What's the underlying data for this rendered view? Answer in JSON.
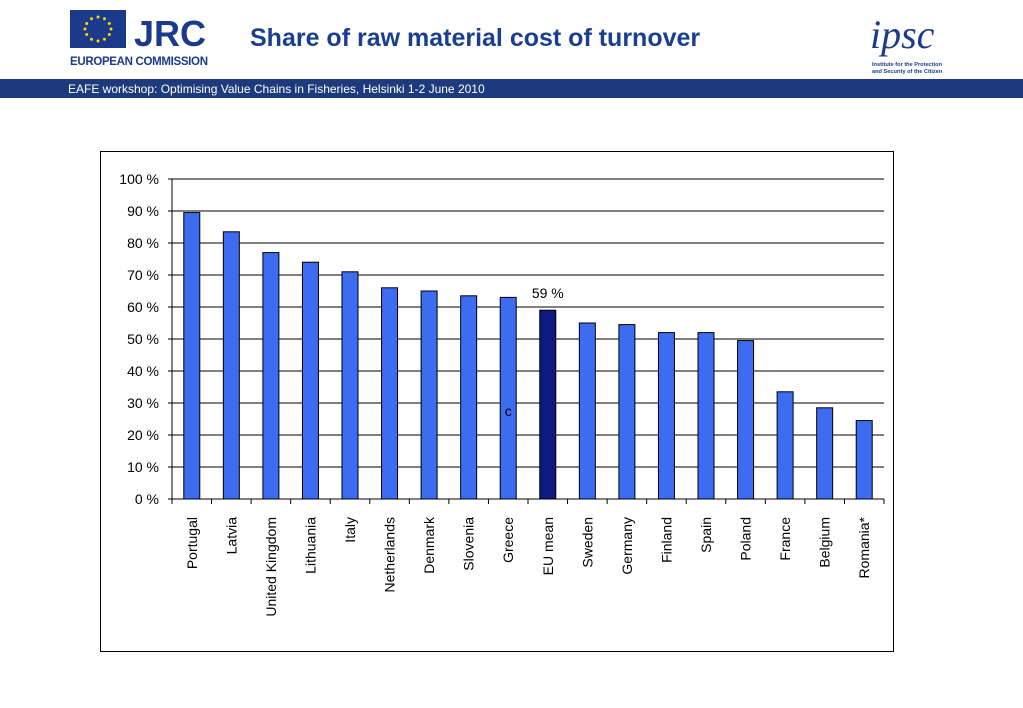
{
  "header": {
    "title": "Share of raw material cost of turnover",
    "subtitle": "EAFE workshop: Optimising  Value Chains in Fisheries, Helsinki 1-2 June 2010",
    "ec_logo_text": "JRC",
    "ec_logo_subtext": "EUROPEAN COMMISSION",
    "ipsc_logo_text": "ipsc",
    "ipsc_logo_subtext": [
      "Institute for the Protection",
      "and Security of the Citizen"
    ]
  },
  "colors": {
    "header_band": "#1c3a7c",
    "title": "#1a3f8f",
    "bar": "#3d6cf0",
    "bar_highlight": "#0a1a80"
  },
  "chart_data": {
    "type": "bar",
    "categories": [
      "Portugal",
      "Latvia",
      "United Kingdom",
      "Lithuania",
      "Italy",
      "Netherlands",
      "Denmark",
      "Slovenia",
      "Greece",
      "EU mean",
      "Sweden",
      "Germany",
      "Finland",
      "Spain",
      "Poland",
      "France",
      "Belgium",
      "Romania*"
    ],
    "values": [
      89.5,
      83.5,
      77,
      74,
      71,
      66,
      65,
      63.5,
      63,
      59,
      55,
      54.5,
      52,
      52,
      49.5,
      33.5,
      28.5,
      24.5
    ],
    "highlight": "EU mean",
    "annotations": [
      {
        "category": "EU mean",
        "text": "59 %"
      },
      {
        "category": "Greece",
        "text": "c"
      }
    ],
    "ylim": [
      0,
      100
    ],
    "yticks": [
      "0 %",
      "10 %",
      "20 %",
      "30 %",
      "40 %",
      "50 %",
      "60 %",
      "70 %",
      "80 %",
      "90 %",
      "100 %"
    ],
    "grid": true,
    "xlabel": "",
    "ylabel": "",
    "title": ""
  }
}
